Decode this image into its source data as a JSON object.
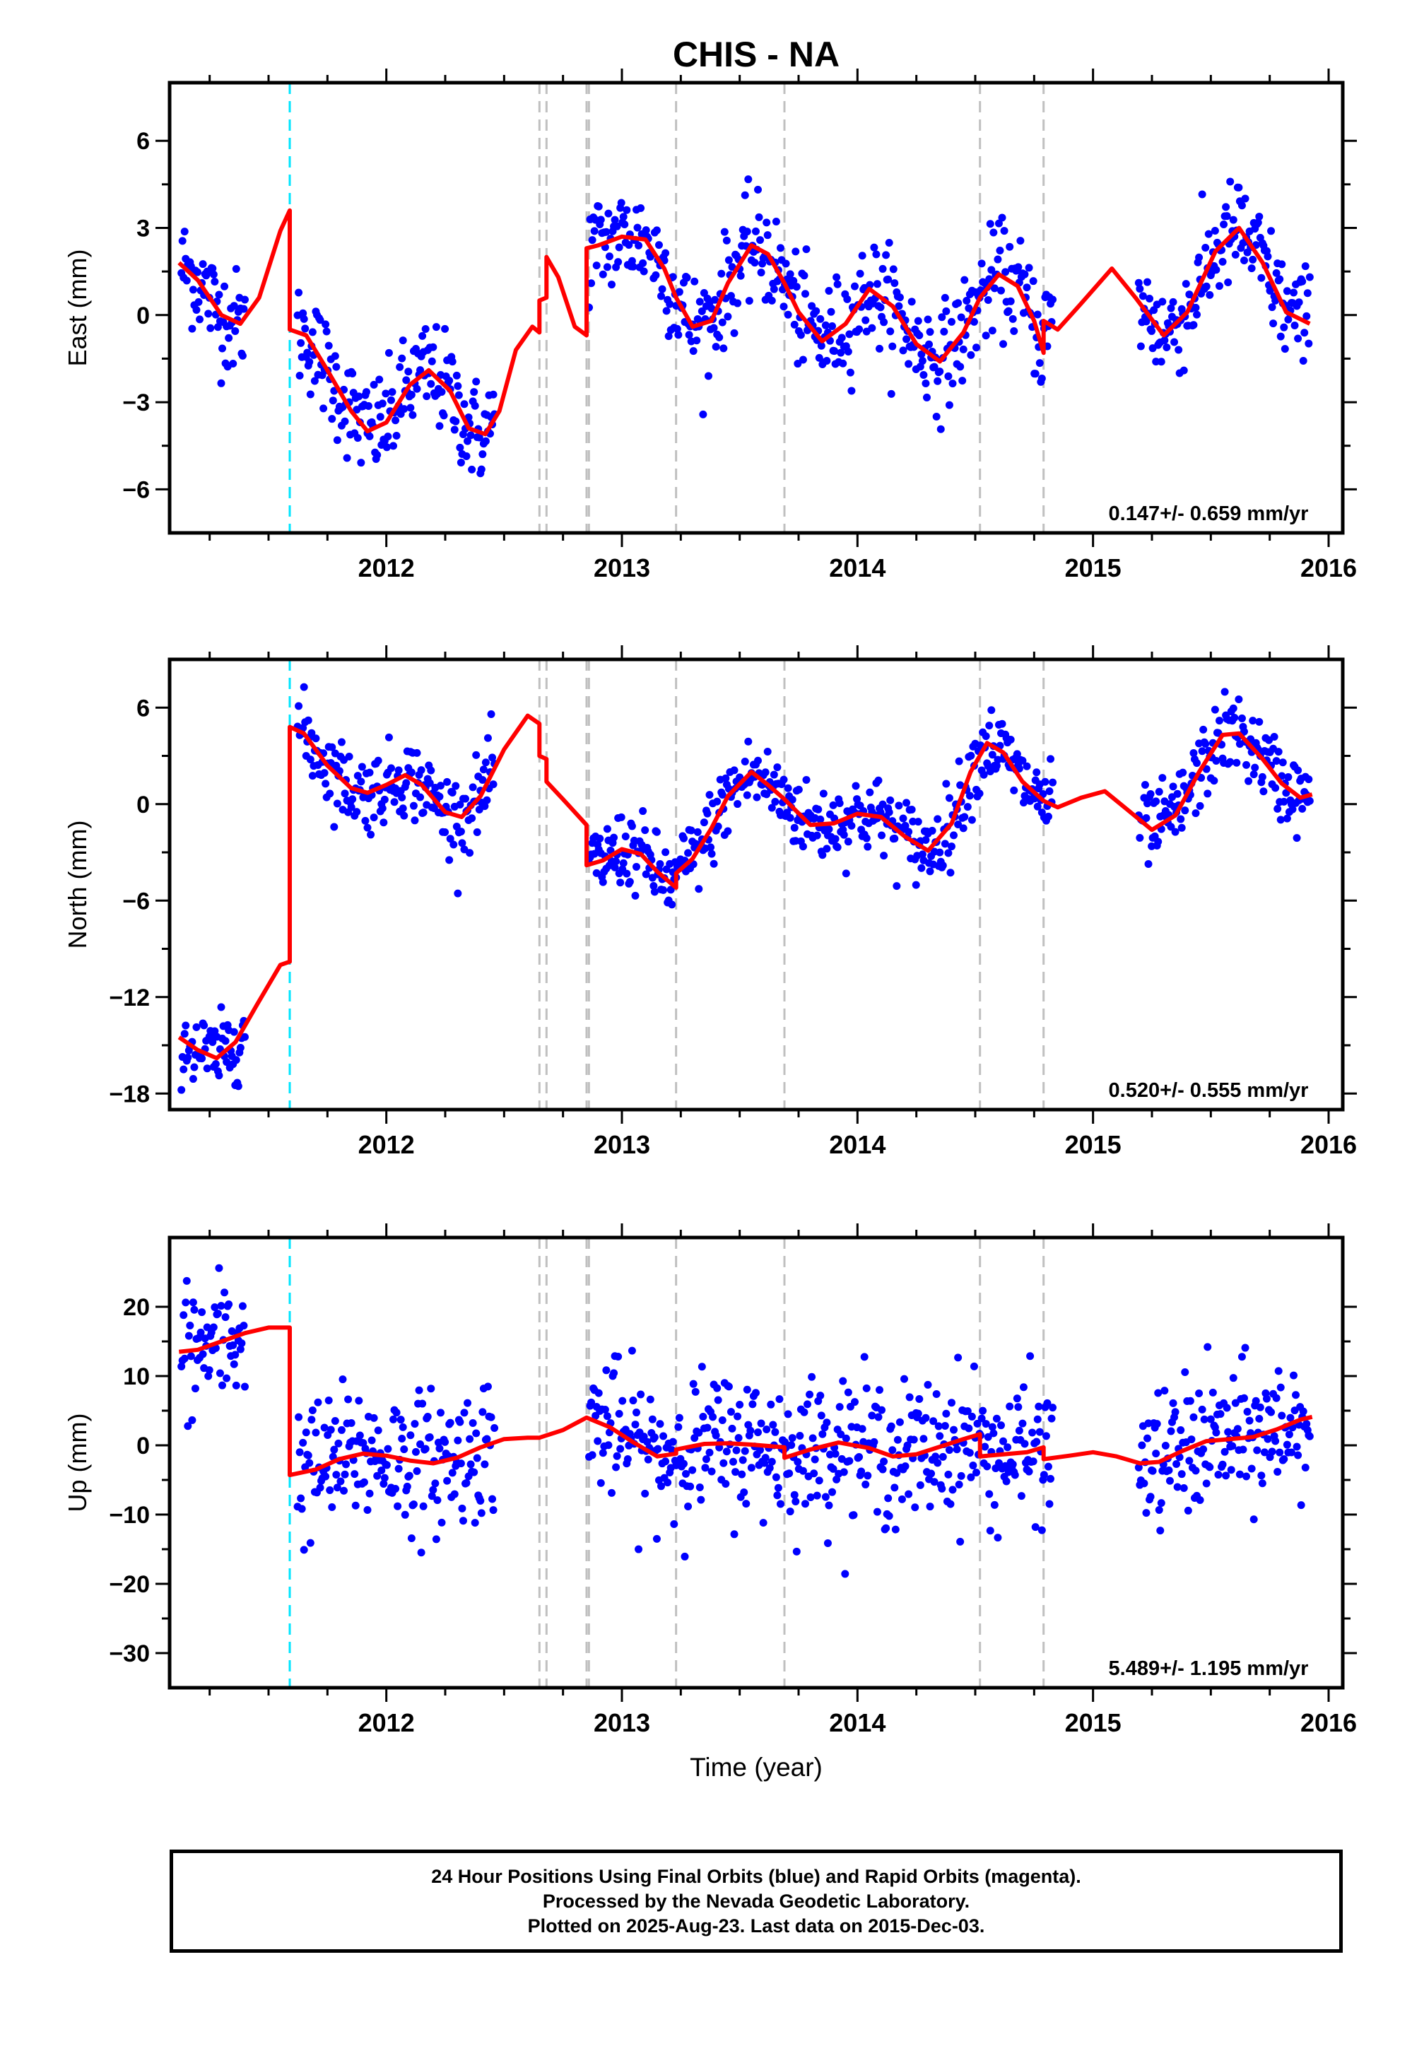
{
  "title": "CHIS - NA",
  "xlabel": "Time (year)",
  "colors": {
    "data": "#0000ff",
    "model": "#ff0000",
    "offset_equipment": "#c0c0c0",
    "offset_earthquake": "#00e5ff"
  },
  "footer": {
    "line1": "24 Hour Positions Using Final Orbits (blue) and Rapid Orbits (magenta).",
    "line2": "Processed by the Nevada Geodetic Laboratory.",
    "line3": "Plotted on 2025-Aug-23. Last data on 2015-Dec-03."
  },
  "chart_data": [
    {
      "type": "scatter",
      "name": "east",
      "ylabel": "East (mm)",
      "xlim": [
        2011.08,
        2016.06
      ],
      "ylim": [
        -7.5,
        8.0
      ],
      "xticks": [
        2012,
        2013,
        2014,
        2015,
        2016
      ],
      "yticks": [
        -6,
        -3,
        0,
        3,
        6
      ],
      "ytick_labels": [
        "−6",
        "−3",
        "0",
        "3",
        "6"
      ],
      "rate": "0.147+/- 0.659 mm/yr",
      "offsets_equipment": [
        2012.65,
        2012.68,
        2012.85,
        2012.86,
        2013.23,
        2013.69,
        2014.52,
        2014.79
      ],
      "offsets_earthquake": [
        2011.59
      ],
      "model": [
        [
          2011.12,
          1.8
        ],
        [
          2011.2,
          1.2
        ],
        [
          2011.3,
          0.0
        ],
        [
          2011.38,
          -0.3
        ],
        [
          2011.46,
          0.6
        ],
        [
          2011.55,
          2.9
        ],
        [
          2011.59,
          3.6
        ],
        [
          2011.59,
          -0.5
        ],
        [
          2011.66,
          -0.7
        ],
        [
          2011.75,
          -1.9
        ],
        [
          2011.85,
          -3.3
        ],
        [
          2011.92,
          -4.0
        ],
        [
          2012.0,
          -3.7
        ],
        [
          2012.1,
          -2.4
        ],
        [
          2012.18,
          -1.9
        ],
        [
          2012.27,
          -2.6
        ],
        [
          2012.35,
          -3.9
        ],
        [
          2012.42,
          -4.1
        ],
        [
          2012.48,
          -3.3
        ],
        [
          2012.55,
          -1.2
        ],
        [
          2012.62,
          -0.4
        ],
        [
          2012.65,
          -0.6
        ],
        [
          2012.65,
          0.5
        ],
        [
          2012.68,
          0.6
        ],
        [
          2012.68,
          2.0
        ],
        [
          2012.73,
          1.3
        ],
        [
          2012.8,
          -0.4
        ],
        [
          2012.85,
          -0.7
        ],
        [
          2012.85,
          2.3
        ],
        [
          2012.9,
          2.4
        ],
        [
          2013.0,
          2.7
        ],
        [
          2013.1,
          2.6
        ],
        [
          2013.18,
          1.6
        ],
        [
          2013.23,
          0.6
        ],
        [
          2013.3,
          -0.4
        ],
        [
          2013.38,
          -0.2
        ],
        [
          2013.45,
          1.1
        ],
        [
          2013.55,
          2.4
        ],
        [
          2013.62,
          2.1
        ],
        [
          2013.69,
          1.1
        ],
        [
          2013.75,
          0.1
        ],
        [
          2013.85,
          -0.9
        ],
        [
          2013.95,
          -0.3
        ],
        [
          2014.05,
          0.9
        ],
        [
          2014.15,
          0.3
        ],
        [
          2014.25,
          -1.0
        ],
        [
          2014.35,
          -1.6
        ],
        [
          2014.45,
          -0.6
        ],
        [
          2014.52,
          0.6
        ],
        [
          2014.6,
          1.4
        ],
        [
          2014.68,
          1.0
        ],
        [
          2014.75,
          -0.2
        ],
        [
          2014.79,
          -1.3
        ],
        [
          2014.79,
          -0.2
        ],
        [
          2014.85,
          -0.5
        ],
        [
          2014.95,
          0.4
        ],
        [
          2015.08,
          1.6
        ],
        [
          2015.18,
          0.6
        ],
        [
          2015.3,
          -0.7
        ],
        [
          2015.4,
          0.1
        ],
        [
          2015.52,
          2.2
        ],
        [
          2015.62,
          3.0
        ],
        [
          2015.72,
          1.8
        ],
        [
          2015.82,
          0.1
        ],
        [
          2015.92,
          -0.3
        ]
      ]
    },
    {
      "type": "scatter",
      "name": "north",
      "ylabel": "North (mm)",
      "xlim": [
        2011.08,
        2016.06
      ],
      "ylim": [
        -19.0,
        9.0
      ],
      "xticks": [
        2012,
        2013,
        2014,
        2015,
        2016
      ],
      "yticks": [
        -18,
        -12,
        -6,
        0,
        6
      ],
      "ytick_labels": [
        "−18",
        "−12",
        "−6",
        "0",
        "6"
      ],
      "rate": "0.520+/- 0.555 mm/yr",
      "offsets_equipment": [
        2012.65,
        2012.68,
        2012.85,
        2012.86,
        2013.23,
        2013.69,
        2014.52,
        2014.79
      ],
      "offsets_earthquake": [
        2011.59
      ],
      "model": [
        [
          2011.12,
          -14.5
        ],
        [
          2011.2,
          -15.3
        ],
        [
          2011.28,
          -15.8
        ],
        [
          2011.36,
          -14.8
        ],
        [
          2011.45,
          -12.5
        ],
        [
          2011.55,
          -10.0
        ],
        [
          2011.59,
          -9.8
        ],
        [
          2011.59,
          4.8
        ],
        [
          2011.65,
          4.4
        ],
        [
          2011.75,
          2.4
        ],
        [
          2011.85,
          1.0
        ],
        [
          2011.92,
          0.7
        ],
        [
          2012.0,
          1.2
        ],
        [
          2012.08,
          1.8
        ],
        [
          2012.15,
          1.2
        ],
        [
          2012.25,
          -0.5
        ],
        [
          2012.32,
          -0.8
        ],
        [
          2012.4,
          0.5
        ],
        [
          2012.5,
          3.4
        ],
        [
          2012.6,
          5.5
        ],
        [
          2012.65,
          5.0
        ],
        [
          2012.65,
          3.0
        ],
        [
          2012.68,
          2.8
        ],
        [
          2012.68,
          1.4
        ],
        [
          2012.75,
          0.3
        ],
        [
          2012.85,
          -1.3
        ],
        [
          2012.85,
          -3.8
        ],
        [
          2012.92,
          -3.5
        ],
        [
          2013.0,
          -2.8
        ],
        [
          2013.08,
          -3.1
        ],
        [
          2013.15,
          -4.2
        ],
        [
          2013.23,
          -5.2
        ],
        [
          2013.23,
          -4.3
        ],
        [
          2013.3,
          -3.4
        ],
        [
          2013.38,
          -1.5
        ],
        [
          2013.45,
          0.5
        ],
        [
          2013.55,
          2.0
        ],
        [
          2013.62,
          1.2
        ],
        [
          2013.69,
          0.3
        ],
        [
          2013.8,
          -1.3
        ],
        [
          2013.9,
          -1.2
        ],
        [
          2014.0,
          -0.6
        ],
        [
          2014.1,
          -0.8
        ],
        [
          2014.2,
          -2.0
        ],
        [
          2014.3,
          -2.9
        ],
        [
          2014.4,
          -1.2
        ],
        [
          2014.48,
          2.0
        ],
        [
          2014.55,
          3.8
        ],
        [
          2014.62,
          3.2
        ],
        [
          2014.7,
          1.4
        ],
        [
          2014.79,
          0.2
        ],
        [
          2014.85,
          -0.2
        ],
        [
          2014.95,
          0.4
        ],
        [
          2015.05,
          0.8
        ],
        [
          2015.15,
          -0.4
        ],
        [
          2015.25,
          -1.6
        ],
        [
          2015.35,
          -0.7
        ],
        [
          2015.45,
          2.0
        ],
        [
          2015.55,
          4.3
        ],
        [
          2015.62,
          4.4
        ],
        [
          2015.72,
          2.8
        ],
        [
          2015.8,
          1.3
        ],
        [
          2015.88,
          0.4
        ],
        [
          2015.93,
          0.6
        ]
      ]
    },
    {
      "type": "scatter",
      "name": "up",
      "ylabel": "Up (mm)",
      "xlim": [
        2011.08,
        2016.06
      ],
      "ylim": [
        -35.0,
        30.0
      ],
      "xticks": [
        2012,
        2013,
        2014,
        2015,
        2016
      ],
      "yticks": [
        -30,
        -20,
        -10,
        0,
        10,
        20
      ],
      "ytick_labels": [
        "−30",
        "−20",
        "−10",
        "0",
        "10",
        "20"
      ],
      "rate": "5.489+/- 1.195 mm/yr",
      "offsets_equipment": [
        2012.65,
        2012.68,
        2012.85,
        2012.86,
        2013.23,
        2013.69,
        2014.52,
        2014.79
      ],
      "offsets_earthquake": [
        2011.59
      ],
      "model": [
        [
          2011.12,
          13.5
        ],
        [
          2011.2,
          13.8
        ],
        [
          2011.3,
          15.0
        ],
        [
          2011.4,
          16.2
        ],
        [
          2011.5,
          17.0
        ],
        [
          2011.59,
          17.0
        ],
        [
          2011.59,
          -4.3
        ],
        [
          2011.7,
          -3.5
        ],
        [
          2011.8,
          -2.0
        ],
        [
          2011.9,
          -1.2
        ],
        [
          2012.0,
          -1.5
        ],
        [
          2012.1,
          -2.2
        ],
        [
          2012.2,
          -2.6
        ],
        [
          2012.3,
          -1.8
        ],
        [
          2012.4,
          -0.3
        ],
        [
          2012.5,
          0.9
        ],
        [
          2012.6,
          1.1
        ],
        [
          2012.65,
          1.1
        ],
        [
          2012.75,
          2.2
        ],
        [
          2012.85,
          4.0
        ],
        [
          2012.95,
          2.6
        ],
        [
          2013.05,
          0.4
        ],
        [
          2013.15,
          -1.6
        ],
        [
          2013.23,
          -1.2
        ],
        [
          2013.23,
          -0.6
        ],
        [
          2013.35,
          0.2
        ],
        [
          2013.45,
          0.3
        ],
        [
          2013.55,
          0.1
        ],
        [
          2013.69,
          -0.3
        ],
        [
          2013.69,
          -1.8
        ],
        [
          2013.8,
          -0.6
        ],
        [
          2013.92,
          0.4
        ],
        [
          2014.05,
          -0.4
        ],
        [
          2014.15,
          -1.6
        ],
        [
          2014.25,
          -1.3
        ],
        [
          2014.35,
          -0.2
        ],
        [
          2014.45,
          0.9
        ],
        [
          2014.52,
          1.6
        ],
        [
          2014.52,
          -1.6
        ],
        [
          2014.62,
          -1.3
        ],
        [
          2014.72,
          -1.0
        ],
        [
          2014.79,
          -0.3
        ],
        [
          2014.79,
          -2.0
        ],
        [
          2014.9,
          -1.5
        ],
        [
          2015.0,
          -1.0
        ],
        [
          2015.1,
          -1.6
        ],
        [
          2015.2,
          -2.6
        ],
        [
          2015.28,
          -2.4
        ],
        [
          2015.38,
          -0.8
        ],
        [
          2015.48,
          0.6
        ],
        [
          2015.58,
          0.9
        ],
        [
          2015.68,
          1.2
        ],
        [
          2015.78,
          2.3
        ],
        [
          2015.88,
          3.7
        ],
        [
          2015.93,
          4.1
        ]
      ]
    }
  ]
}
